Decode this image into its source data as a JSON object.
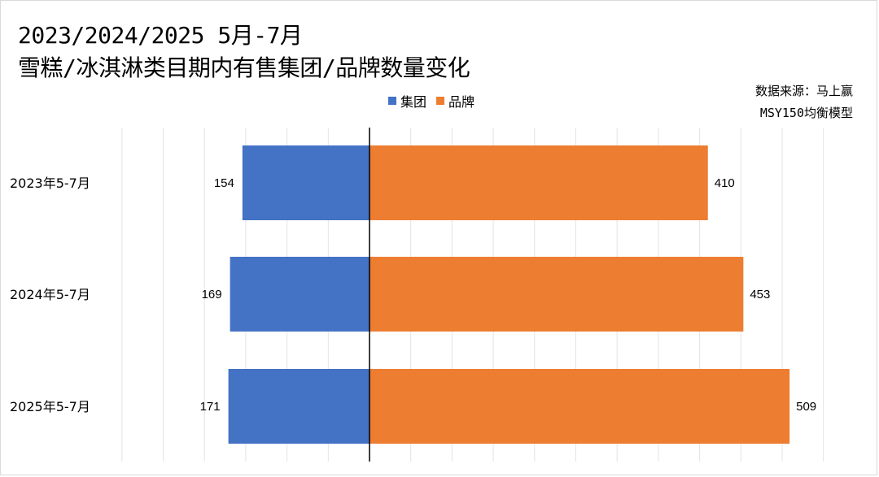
{
  "title": {
    "line1": "2023/2024/2025 5月-7月",
    "line2": "雪糕/冰淇淋类目期内有售集团/品牌数量变化"
  },
  "source": {
    "line1": "数据来源：马上赢",
    "line2": "MSY150均衡模型"
  },
  "legend": {
    "items": [
      {
        "label": "集团",
        "color": "#4472C4"
      },
      {
        "label": "品牌",
        "color": "#ED7D31"
      }
    ]
  },
  "chart_data": {
    "type": "bar",
    "orientation": "horizontal",
    "layout": "diverging",
    "categories": [
      "2023年5-7月",
      "2024年5-7月",
      "2025年5-7月"
    ],
    "series": [
      {
        "name": "集团",
        "values": [
          154,
          169,
          171
        ],
        "color": "#4472C4",
        "direction": "left"
      },
      {
        "name": "品牌",
        "values": [
          410,
          453,
          509
        ],
        "color": "#ED7D31",
        "direction": "right"
      }
    ],
    "legend_position": "top",
    "grid": true,
    "axis_tick_labels_visible": false
  }
}
